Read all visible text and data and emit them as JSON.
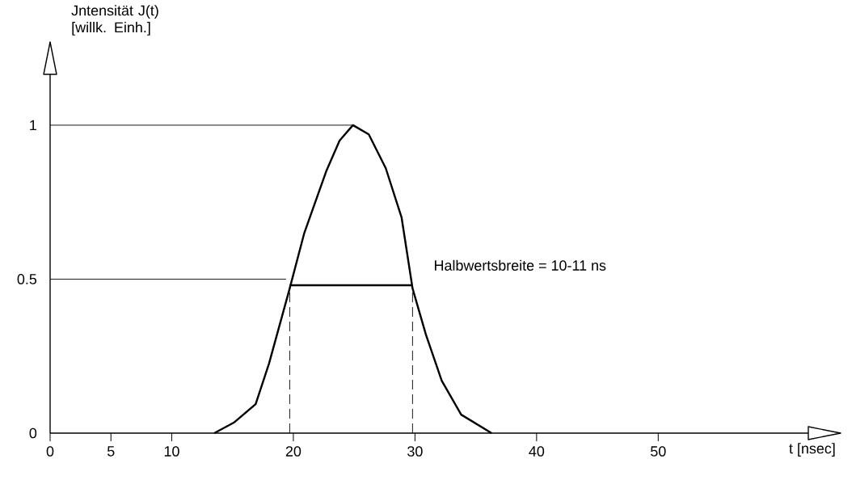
{
  "chart_data": {
    "type": "line",
    "xlabel": "t [nsec]",
    "ylabel": "Jntensität J(t) [willk. Einh.]",
    "xlim": [
      0,
      65
    ],
    "ylim": [
      0,
      1.27
    ],
    "xticks": [
      0,
      5,
      10,
      20,
      30,
      40,
      50
    ],
    "yticks": [
      0,
      0.5,
      1
    ],
    "series": [
      {
        "color": "#000000",
        "x": [
          13.5,
          15.1,
          16.9,
          18.0,
          19.7,
          20.9,
          22.7,
          23.8,
          24.9,
          26.2,
          27.6,
          28.9,
          29.8,
          30.9,
          32.2,
          33.8,
          36.3
        ],
        "values": [
          0,
          0.034,
          0.094,
          0.226,
          0.47,
          0.65,
          0.85,
          0.95,
          1.0,
          0.97,
          0.86,
          0.7,
          0.47,
          0.32,
          0.17,
          0.06,
          0
        ]
      },
      {
        "color": "#000000",
        "x": [
          19.7,
          29.8
        ],
        "values": [
          0.48,
          0.48
        ]
      },
      {
        "color": "#000000",
        "x": [
          0,
          24.9
        ],
        "values": [
          1,
          1
        ]
      },
      {
        "color": "#000000",
        "x": [
          0,
          19.4
        ],
        "values": [
          0.5,
          0.5
        ]
      },
      {
        "color": "#000000",
        "line_style": "dashed",
        "x": [
          19.7,
          19.7
        ],
        "values": [
          0,
          0.48
        ]
      },
      {
        "color": "#000000",
        "line_style": "dashed",
        "x": [
          29.8,
          29.8
        ],
        "values": [
          0,
          0.48
        ]
      }
    ],
    "annotations": [
      {
        "text": "Halbwertsbreite = 10-11 ns",
        "x": 29.8,
        "y": 0.48
      }
    ]
  }
}
